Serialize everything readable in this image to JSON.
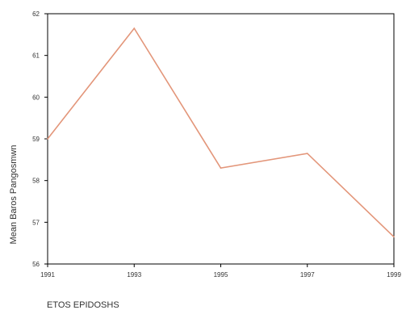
{
  "chart_data": {
    "type": "line",
    "title": "",
    "xlabel": "ETOS EPIDOSHS",
    "ylabel": "Mean Baros Pangosmwn",
    "x": [
      1991,
      1993,
      1995,
      1997,
      1999
    ],
    "x_tick_labels": [
      "1991",
      "1993",
      "1995",
      "1997",
      "1999"
    ],
    "y_ticks": [
      56,
      57,
      58,
      59,
      60,
      61,
      62
    ],
    "y_tick_labels": [
      "56",
      "57",
      "58",
      "59",
      "60",
      "61",
      "62"
    ],
    "xlim": [
      1991,
      1999
    ],
    "ylim": [
      56,
      62
    ],
    "grid": false,
    "series": [
      {
        "values": [
          59.0,
          61.65,
          58.3,
          58.65,
          56.65
        ]
      }
    ],
    "colors": {
      "line": "#e3967a",
      "axis": "#000000",
      "text": "#333333"
    }
  }
}
